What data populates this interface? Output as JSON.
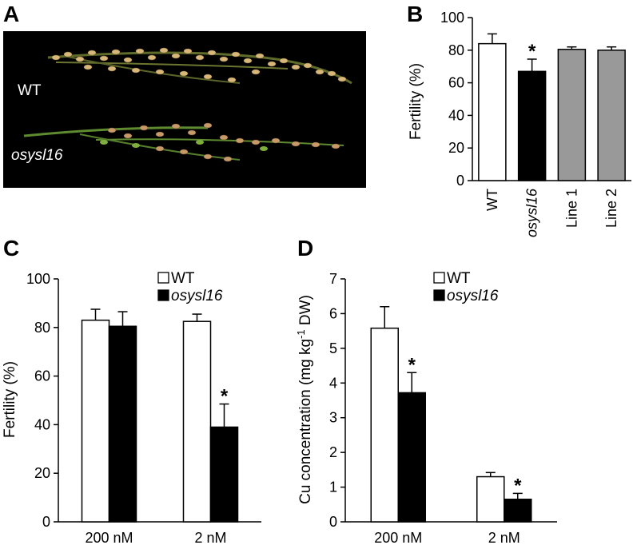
{
  "panels": {
    "a": {
      "letter": "A",
      "wt_label": "WT",
      "mutant_label": "osysl16"
    },
    "b": {
      "letter": "B"
    },
    "c": {
      "letter": "C"
    },
    "d": {
      "letter": "D"
    }
  },
  "colors": {
    "wt": "#ffffff",
    "mutant": "#000000",
    "lines": "#999999",
    "photo_bg": "#000000"
  },
  "chart_data": [
    {
      "id": "b",
      "type": "bar",
      "categories": [
        "WT",
        "osysl16",
        "Line 1",
        "Line 2"
      ],
      "values": [
        84,
        67,
        80.5,
        80
      ],
      "errors": [
        6,
        7.5,
        1.5,
        2
      ],
      "significance": [
        "",
        "*",
        "",
        ""
      ],
      "bar_colors": [
        "wt",
        "mutant",
        "lines",
        "lines"
      ],
      "ylabel": "Fertility (%)",
      "ylim": [
        0,
        100
      ],
      "yticks": [
        0,
        20,
        40,
        60,
        80,
        100
      ]
    },
    {
      "id": "c",
      "type": "bar",
      "categories": [
        "200 nM",
        "2 nM"
      ],
      "series": [
        {
          "name": "WT",
          "values": [
            83,
            82.5
          ],
          "errors": [
            4.5,
            3
          ],
          "significance": [
            "",
            ""
          ]
        },
        {
          "name": "osysl16",
          "values": [
            80.5,
            39
          ],
          "errors": [
            6,
            9.5
          ],
          "significance": [
            "",
            "*"
          ]
        }
      ],
      "ylabel": "Fertility (%)",
      "ylim": [
        0,
        100
      ],
      "yticks": [
        0,
        20,
        40,
        60,
        80,
        100
      ],
      "legend_position": "top-right"
    },
    {
      "id": "d",
      "type": "bar",
      "categories": [
        "200 nM",
        "2 nM"
      ],
      "series": [
        {
          "name": "WT",
          "values": [
            5.58,
            1.3
          ],
          "errors": [
            0.62,
            0.12
          ],
          "significance": [
            "",
            ""
          ]
        },
        {
          "name": "osysl16",
          "values": [
            3.72,
            0.65
          ],
          "errors": [
            0.58,
            0.17
          ],
          "significance": [
            "*",
            "*"
          ]
        }
      ],
      "ylabel_main": "Cu  concentration (mg kg",
      "ylabel_sup": "-1",
      "ylabel_tail": " DW)",
      "ylim": [
        0,
        7
      ],
      "yticks": [
        0,
        1,
        2,
        3,
        4,
        5,
        6,
        7
      ],
      "legend_position": "top-right"
    }
  ]
}
